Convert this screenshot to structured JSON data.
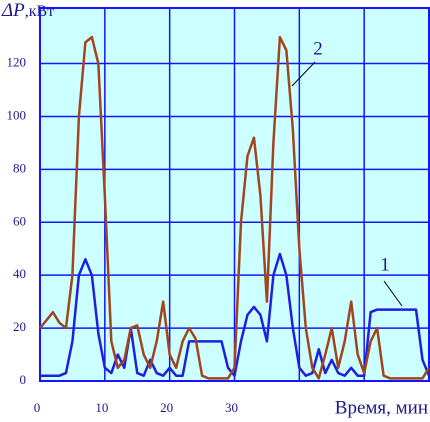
{
  "chart_data": {
    "type": "line",
    "y_label_symbol": "ΔP",
    "y_label_unit": ",кВт",
    "x_label": "Время, мин",
    "x": [
      0,
      1,
      2,
      3,
      4,
      5,
      6,
      7,
      8,
      9,
      10,
      11,
      12,
      13,
      14,
      15,
      16,
      17,
      18,
      19,
      20,
      21,
      22,
      23,
      24,
      25,
      26,
      27,
      28,
      29,
      30,
      31,
      32,
      33,
      34,
      35,
      36,
      37,
      38,
      39,
      40,
      41,
      42,
      43,
      44,
      45,
      46,
      47,
      48,
      49,
      50,
      51,
      52,
      53,
      54,
      55,
      56,
      57,
      58,
      59,
      60
    ],
    "series": [
      {
        "name": "1",
        "color": "#1f1fe0",
        "values": [
          2,
          2,
          2,
          2,
          3,
          15,
          40,
          46,
          40,
          18,
          5,
          3,
          10,
          5,
          20,
          3,
          2,
          8,
          3,
          2,
          5,
          2,
          2,
          15,
          15,
          15,
          15,
          15,
          15,
          5,
          2,
          15,
          25,
          28,
          25,
          15,
          40,
          48,
          40,
          20,
          5,
          2,
          3,
          12,
          3,
          8,
          3,
          2,
          5,
          2,
          2,
          26,
          27,
          27,
          27,
          27,
          27,
          27,
          27,
          8,
          2
        ]
      },
      {
        "name": "2",
        "color": "#a0461e",
        "values": [
          20,
          23,
          26,
          22,
          20,
          40,
          100,
          128,
          130,
          120,
          70,
          15,
          5,
          8,
          20,
          21,
          10,
          5,
          15,
          30,
          10,
          5,
          15,
          20,
          16,
          2,
          1,
          1,
          1,
          1,
          5,
          60,
          85,
          92,
          70,
          30,
          90,
          130,
          125,
          95,
          50,
          20,
          5,
          1,
          10,
          20,
          5,
          15,
          30,
          10,
          3,
          15,
          20,
          2,
          1,
          1,
          1,
          1,
          1,
          1,
          5
        ]
      }
    ],
    "xlim": [
      0,
      60
    ],
    "xticks": [
      0,
      10,
      20,
      30
    ],
    "xgrid": [
      10,
      20,
      30,
      40,
      50
    ],
    "ylim": [
      0,
      141
    ],
    "yticks": [
      0,
      20,
      40,
      60,
      80,
      100,
      120
    ],
    "grid": true,
    "background": "#ccffff",
    "grid_color": "#1515ff"
  }
}
